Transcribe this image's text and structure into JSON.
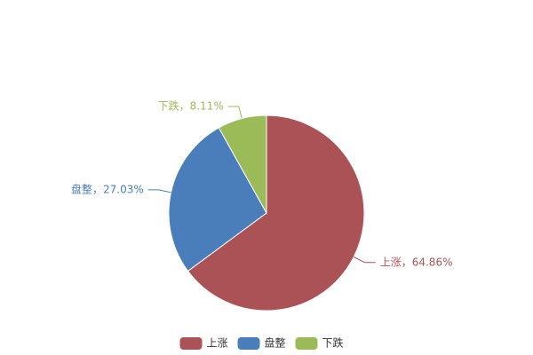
{
  "chart_data": {
    "type": "pie",
    "categories": [
      "上涨",
      "盘整",
      "下跌"
    ],
    "values": [
      64.86,
      27.03,
      8.11
    ],
    "value_labels": [
      "上涨，64.86%",
      "盘整，27.03%",
      "下跌，8.11%"
    ],
    "colors": [
      "#ab5257",
      "#4a7ebb",
      "#9bbb59"
    ],
    "legend": "bottom"
  }
}
